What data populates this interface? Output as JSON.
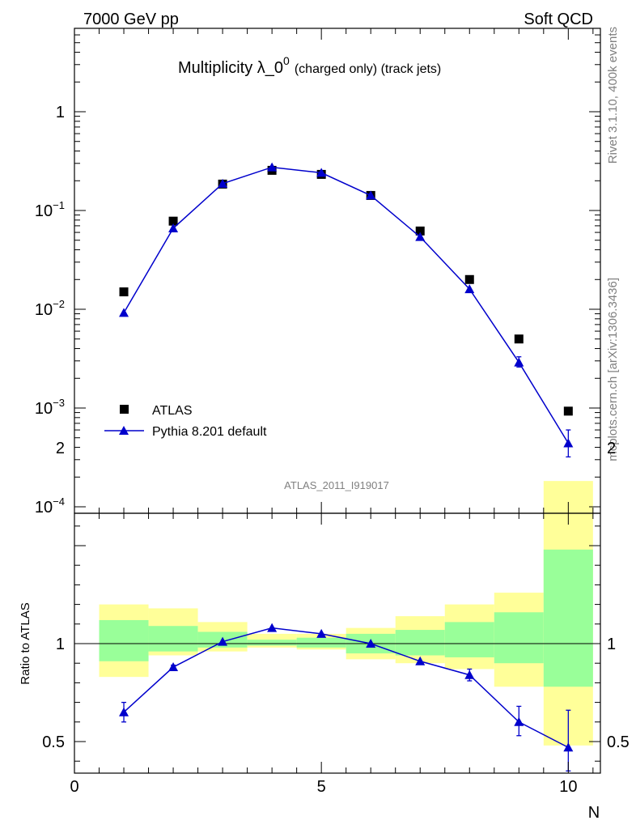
{
  "header": {
    "left": "7000 GeV pp",
    "right": "Soft QCD"
  },
  "title": {
    "main": "Multiplicity λ_0",
    "sup": "0",
    "sub": "(charged only) (track jets)"
  },
  "side_labels": {
    "rivet": "Rivet 3.1.10,  400k events",
    "mcplots": "mcplots.cern.ch [arXiv:1306.3436]"
  },
  "watermark": "ATLAS_2011_I919017",
  "legend": {
    "atlas": "ATLAS",
    "pythia": "Pythia 8.201 default"
  },
  "ratio_label": "Ratio to ATLAS",
  "xlabel": "N",
  "colors": {
    "mc": "#0000cc",
    "data": "#000000",
    "band_stat": "#99ff99",
    "band_total": "#ffff99"
  },
  "chart_data": [
    {
      "type": "scatter",
      "log_y": true,
      "xlim": [
        0,
        10.65
      ],
      "ylim": [
        0.0001,
        5
      ],
      "y_ticks": [
        {
          "value": 0.0001,
          "base": "10",
          "exp": "−4"
        },
        {
          "value": 0.001,
          "base": "10",
          "exp": "−3"
        },
        {
          "value": 0.01,
          "base": "10",
          "exp": "−2"
        },
        {
          "value": 0.1,
          "base": "10",
          "exp": "−1"
        },
        {
          "value": 1,
          "base": "1",
          "exp": ""
        }
      ],
      "series": [
        {
          "name": "ATLAS",
          "x": [
            1,
            2,
            3,
            4,
            5,
            6,
            7,
            8,
            9,
            10
          ],
          "values": [
            0.015,
            0.078,
            0.185,
            0.255,
            0.232,
            0.142,
            0.062,
            0.02,
            0.005,
            0.00093
          ]
        },
        {
          "name": "Pythia 8.201 default",
          "x": [
            1,
            2,
            3,
            4,
            5,
            6,
            7,
            8,
            9,
            10
          ],
          "values": [
            0.0092,
            0.066,
            0.187,
            0.274,
            0.241,
            0.142,
            0.054,
            0.016,
            0.0029,
            0.00044
          ],
          "err_low": [
            0.0092,
            0.066,
            0.187,
            0.274,
            0.241,
            0.142,
            0.054,
            0.016,
            0.0026,
            0.00032
          ],
          "err_high": [
            0.0092,
            0.066,
            0.187,
            0.274,
            0.241,
            0.142,
            0.054,
            0.016,
            0.0033,
            0.0006
          ]
        }
      ]
    },
    {
      "type": "line",
      "xlim": [
        0,
        10.65
      ],
      "ylim": [
        0.35,
        2.35
      ],
      "y_ticks": [
        0.5,
        1,
        2
      ],
      "x_ticks": [
        0,
        5,
        10
      ],
      "reference": 1,
      "bands": {
        "x": [
          1,
          2,
          3,
          4,
          5,
          6,
          7,
          8,
          9,
          10
        ],
        "total_low": [
          0.83,
          0.94,
          0.96,
          0.98,
          0.97,
          0.92,
          0.9,
          0.87,
          0.78,
          0.48
        ],
        "total_high": [
          1.2,
          1.18,
          1.11,
          1.05,
          1.05,
          1.08,
          1.14,
          1.2,
          1.26,
          1.83
        ],
        "stat_low": [
          0.91,
          0.96,
          0.98,
          0.99,
          0.98,
          0.95,
          0.94,
          0.93,
          0.9,
          0.78
        ],
        "stat_high": [
          1.12,
          1.09,
          1.06,
          1.02,
          1.03,
          1.05,
          1.07,
          1.11,
          1.16,
          1.48
        ]
      },
      "series": [
        {
          "name": "Pythia 8.201 default",
          "x": [
            1,
            2,
            3,
            4,
            5,
            6,
            7,
            8,
            9,
            10
          ],
          "values": [
            0.65,
            0.88,
            1.01,
            1.08,
            1.05,
            1.0,
            0.91,
            0.84,
            0.6,
            0.47
          ],
          "err_low": [
            0.6,
            0.87,
            1.01,
            1.08,
            1.05,
            1.0,
            0.91,
            0.81,
            0.53,
            0.35
          ],
          "err_high": [
            0.7,
            0.89,
            1.01,
            1.08,
            1.05,
            1.0,
            0.91,
            0.87,
            0.68,
            0.66
          ]
        }
      ]
    }
  ]
}
